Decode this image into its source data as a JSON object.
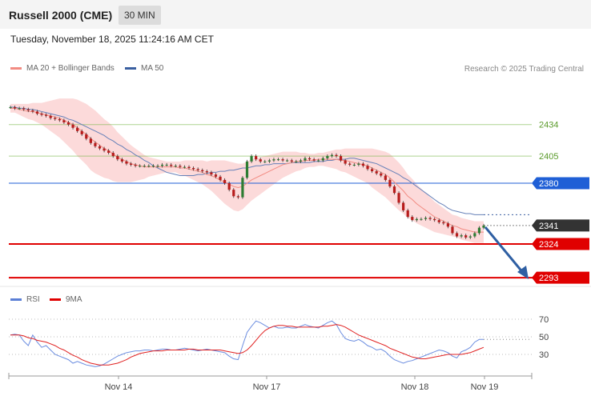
{
  "header": {
    "title": "Russell 2000 (CME)",
    "timeframe": "30 MIN"
  },
  "timestamp": "Tuesday, November 18, 2025 11:24:16 AM CET",
  "legend": {
    "ma20": {
      "label": "MA 20 + Bollinger Bands",
      "color": "#f28b82"
    },
    "ma50": {
      "label": "MA 50",
      "color": "#3a5fa0"
    }
  },
  "credit": "Research © 2025 Trading Central",
  "rsi_legend": {
    "rsi": {
      "label": "RSI",
      "color": "#5b7fd6"
    },
    "ma9": {
      "label": "9MA",
      "color": "#e00000"
    }
  },
  "chart_data": [
    {
      "type": "line",
      "name": "price",
      "x_labels": [
        "Nov 14",
        "Nov 17",
        "Nov 18",
        "Nov 19"
      ],
      "levels": [
        {
          "value": 2434,
          "label": "2434",
          "color": "#7ab648",
          "kind": "resistance"
        },
        {
          "value": 2405,
          "label": "2405",
          "color": "#7ab648",
          "kind": "resistance"
        },
        {
          "value": 2380,
          "label": "2380",
          "color": "#1f5fd6",
          "kind": "pivot"
        },
        {
          "value": 2341,
          "label": "2341",
          "color": "#333333",
          "kind": "last"
        },
        {
          "value": 2324,
          "label": "2324",
          "color": "#e00000",
          "kind": "support"
        },
        {
          "value": 2293,
          "label": "2293",
          "color": "#e00000",
          "kind": "support"
        }
      ],
      "close": [
        2450,
        2449,
        2449,
        2448,
        2447,
        2446,
        2444,
        2443,
        2442,
        2440,
        2439,
        2438,
        2436,
        2434,
        2431,
        2428,
        2425,
        2421,
        2417,
        2414,
        2412,
        2410,
        2408,
        2405,
        2402,
        2400,
        2398,
        2397,
        2396,
        2396,
        2396,
        2396,
        2396,
        2396,
        2397,
        2397,
        2396,
        2396,
        2395,
        2395,
        2394,
        2393,
        2392,
        2391,
        2390,
        2388,
        2386,
        2383,
        2380,
        2374,
        2368,
        2367,
        2385,
        2400,
        2405,
        2402,
        2400,
        2400,
        2401,
        2402,
        2402,
        2401,
        2401,
        2400,
        2400,
        2401,
        2403,
        2402,
        2401,
        2401,
        2403,
        2405,
        2406,
        2405,
        2401,
        2398,
        2397,
        2397,
        2398,
        2396,
        2393,
        2391,
        2389,
        2387,
        2383,
        2377,
        2371,
        2362,
        2355,
        2349,
        2346,
        2347,
        2347,
        2348,
        2347,
        2346,
        2344,
        2343,
        2340,
        2334,
        2331,
        2332,
        2330,
        2331,
        2334,
        2339,
        2341
      ],
      "ma20": [
        2449,
        2449,
        2448,
        2447,
        2446,
        2446,
        2445,
        2444,
        2443,
        2442,
        2441,
        2440,
        2438,
        2436,
        2434,
        2431,
        2428,
        2425,
        2421,
        2418,
        2415,
        2412,
        2410,
        2407,
        2404,
        2402,
        2400,
        2398,
        2397,
        2396,
        2395,
        2395,
        2395,
        2395,
        2395,
        2395,
        2395,
        2395,
        2394,
        2394,
        2393,
        2392,
        2391,
        2390,
        2388,
        2387,
        2385,
        2383,
        2381,
        2379,
        2377,
        2376,
        2377,
        2380,
        2383,
        2385,
        2387,
        2389,
        2391,
        2393,
        2395,
        2397,
        2398,
        2399,
        2400,
        2400,
        2401,
        2401,
        2401,
        2402,
        2402,
        2402,
        2402,
        2402,
        2401,
        2401,
        2400,
        2399,
        2398,
        2397,
        2396,
        2394,
        2392,
        2390,
        2388,
        2385,
        2381,
        2377,
        2373,
        2368,
        2365,
        2361,
        2358,
        2355,
        2352,
        2349,
        2347,
        2345,
        2343,
        2341,
        2340,
        2338,
        2337,
        2336,
        2335,
        2335,
        2335
      ],
      "ma50": [
        2450,
        2450,
        2449,
        2449,
        2448,
        2448,
        2447,
        2446,
        2445,
        2444,
        2443,
        2442,
        2441,
        2439,
        2438,
        2436,
        2434,
        2432,
        2430,
        2428,
        2426,
        2424,
        2421,
        2419,
        2416,
        2414,
        2411,
        2409,
        2406,
        2404,
        2401,
        2399,
        2396,
        2394,
        2392,
        2390,
        2389,
        2388,
        2387,
        2387,
        2387,
        2387,
        2388,
        2388,
        2389,
        2390,
        2390,
        2391,
        2391,
        2392,
        2392,
        2393,
        2394,
        2394,
        2395,
        2396,
        2396,
        2397,
        2397,
        2398,
        2398,
        2398,
        2398,
        2399,
        2399,
        2399,
        2399,
        2399,
        2400,
        2400,
        2400,
        2401,
        2401,
        2402,
        2402,
        2402,
        2403,
        2403,
        2402,
        2401,
        2400,
        2399,
        2398,
        2396,
        2394,
        2392,
        2390,
        2388,
        2385,
        2383,
        2380,
        2377,
        2374,
        2371,
        2368,
        2365,
        2362,
        2360,
        2357,
        2355,
        2354,
        2353,
        2352,
        2352,
        2351,
        2351,
        2351
      ],
      "bb_width": [
        4,
        4,
        5,
        6,
        7,
        8,
        9,
        10,
        12,
        14,
        16,
        18,
        20,
        22,
        24,
        26,
        27,
        28,
        29,
        29,
        28,
        27,
        26,
        25,
        23,
        21,
        19,
        17,
        15,
        13,
        11,
        9,
        8,
        7,
        6,
        5,
        5,
        5,
        6,
        7,
        8,
        9,
        10,
        11,
        12,
        14,
        16,
        18,
        20,
        21,
        22,
        22,
        21,
        20,
        19,
        18,
        17,
        16,
        15,
        14,
        13,
        12,
        11,
        10,
        9,
        8,
        7,
        6,
        6,
        6,
        6,
        7,
        8,
        9,
        10,
        11,
        12,
        13,
        14,
        15,
        16,
        18,
        19,
        20,
        21,
        22,
        22,
        22,
        21,
        20,
        19,
        18,
        17,
        16,
        15,
        14,
        13,
        12,
        11,
        10,
        10,
        10,
        10,
        10,
        10,
        10,
        10
      ]
    },
    {
      "type": "line",
      "name": "rsi",
      "y_ticks": [
        70,
        50,
        30
      ],
      "rsi": [
        52,
        53,
        52,
        45,
        40,
        52,
        44,
        38,
        40,
        35,
        30,
        28,
        26,
        24,
        20,
        22,
        20,
        18,
        17,
        16,
        17,
        19,
        22,
        25,
        28,
        30,
        32,
        33,
        34,
        34,
        35,
        35,
        34,
        35,
        36,
        36,
        35,
        35,
        36,
        37,
        36,
        35,
        34,
        35,
        36,
        35,
        34,
        33,
        32,
        28,
        25,
        24,
        40,
        55,
        62,
        68,
        66,
        63,
        60,
        62,
        60,
        60,
        61,
        60,
        60,
        62,
        64,
        62,
        61,
        60,
        63,
        66,
        68,
        64,
        55,
        48,
        46,
        45,
        47,
        44,
        40,
        38,
        35,
        36,
        33,
        28,
        24,
        22,
        20,
        22,
        23,
        25,
        27,
        29,
        31,
        33,
        35,
        34,
        32,
        28,
        26,
        33,
        35,
        38,
        44,
        47,
        47
      ],
      "ma9": [
        52,
        52,
        52,
        51,
        49,
        48,
        46,
        45,
        44,
        42,
        40,
        37,
        35,
        32,
        29,
        27,
        24,
        22,
        20,
        19,
        18,
        18,
        18,
        19,
        20,
        22,
        24,
        27,
        29,
        31,
        32,
        33,
        34,
        34,
        34,
        35,
        35,
        35,
        35,
        35,
        36,
        36,
        35,
        35,
        35,
        35,
        35,
        35,
        34,
        33,
        32,
        31,
        32,
        35,
        40,
        46,
        52,
        57,
        60,
        62,
        63,
        63,
        62,
        62,
        61,
        61,
        61,
        61,
        61,
        61,
        62,
        62,
        63,
        64,
        63,
        61,
        58,
        55,
        52,
        50,
        48,
        46,
        44,
        42,
        40,
        37,
        35,
        33,
        31,
        29,
        27,
        26,
        25,
        25,
        26,
        27,
        28,
        29,
        30,
        30,
        30,
        30,
        31,
        32,
        34,
        36,
        38
      ]
    }
  ]
}
